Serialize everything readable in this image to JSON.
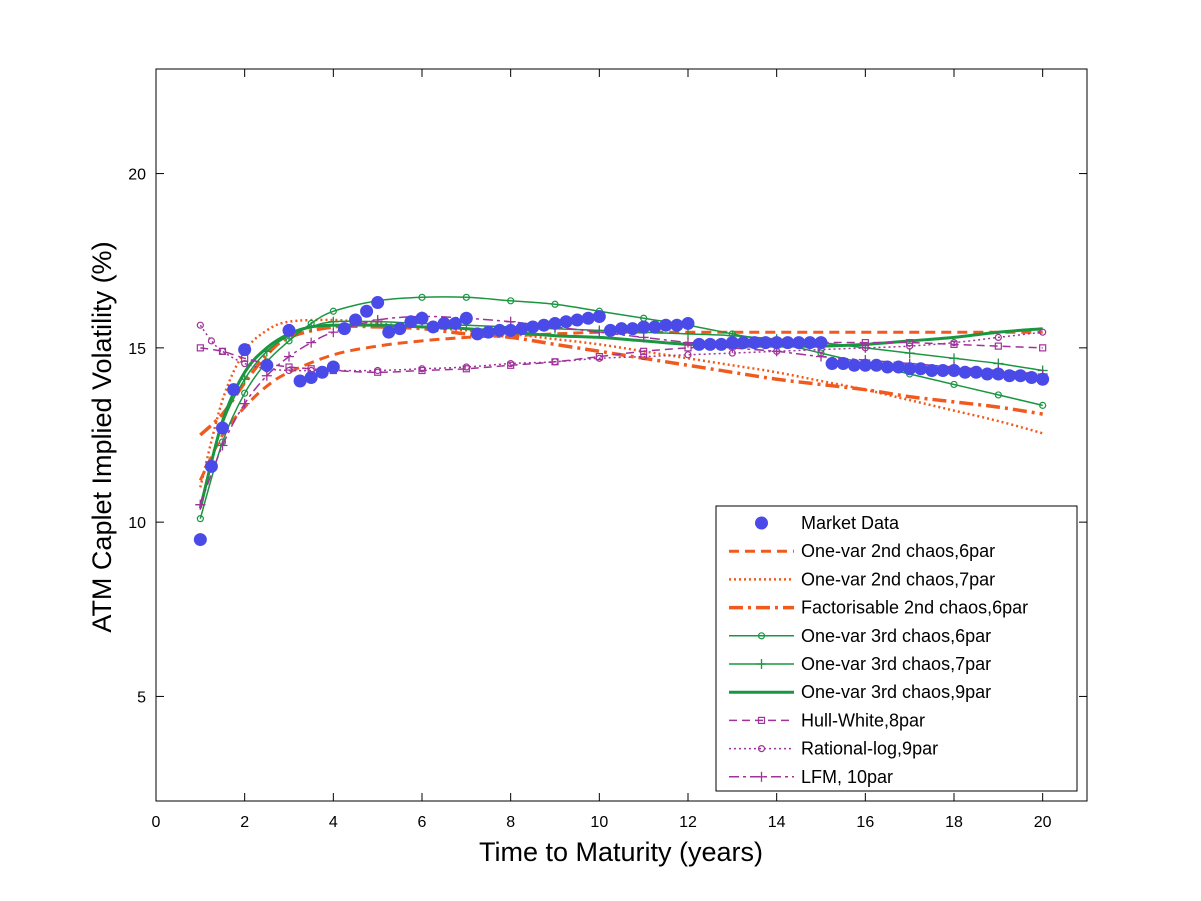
{
  "chart_data": {
    "type": "line",
    "title": "",
    "xlabel": "Time to Maturity (years)",
    "ylabel": "ATM Caplet Implied Volatility (%)",
    "xlim": [
      0,
      21
    ],
    "ylim": [
      2,
      23
    ],
    "xticks": [
      0,
      2,
      4,
      6,
      8,
      10,
      12,
      14,
      16,
      18,
      20
    ],
    "yticks": [
      5,
      10,
      15,
      20
    ],
    "xtick_labels": [
      "0",
      "2",
      "4",
      "6",
      "8",
      "10",
      "12",
      "14",
      "16",
      "18",
      "20"
    ],
    "ytick_labels": [
      "5",
      "10",
      "15",
      "20"
    ],
    "legend_position": "bottom-right",
    "series": [
      {
        "name": "Market Data",
        "style": "marker",
        "color": "#4a4ae8",
        "x": [
          1,
          1.25,
          1.5,
          1.75,
          2,
          2.5,
          3,
          3.25,
          3.5,
          3.75,
          4,
          4.25,
          4.5,
          4.75,
          5,
          5.25,
          5.5,
          5.75,
          6,
          6.25,
          6.5,
          6.75,
          7,
          7.25,
          7.5,
          7.75,
          8,
          8.25,
          8.5,
          8.75,
          9,
          9.25,
          9.5,
          9.75,
          10,
          10.25,
          10.5,
          10.75,
          11,
          11.25,
          11.5,
          11.75,
          12,
          12.25,
          12.5,
          12.75,
          13,
          13.25,
          13.5,
          13.75,
          14,
          14.25,
          14.5,
          14.75,
          15,
          15.25,
          15.5,
          15.75,
          16,
          16.25,
          16.5,
          16.75,
          17,
          17.25,
          17.5,
          17.75,
          18,
          18.25,
          18.5,
          18.75,
          19,
          19.25,
          19.5,
          19.75,
          20
        ],
        "y": [
          9.5,
          11.6,
          12.7,
          13.8,
          14.95,
          14.5,
          15.5,
          14.05,
          14.15,
          14.3,
          14.45,
          15.55,
          15.8,
          16.05,
          16.3,
          15.45,
          15.55,
          15.75,
          15.85,
          15.6,
          15.7,
          15.7,
          15.85,
          15.4,
          15.45,
          15.5,
          15.5,
          15.55,
          15.6,
          15.65,
          15.7,
          15.75,
          15.8,
          15.85,
          15.9,
          15.5,
          15.55,
          15.55,
          15.6,
          15.6,
          15.65,
          15.65,
          15.7,
          15.1,
          15.1,
          15.1,
          15.15,
          15.15,
          15.15,
          15.15,
          15.15,
          15.15,
          15.15,
          15.15,
          15.15,
          14.55,
          14.55,
          14.5,
          14.5,
          14.5,
          14.45,
          14.45,
          14.4,
          14.4,
          14.35,
          14.35,
          14.35,
          14.3,
          14.3,
          14.25,
          14.25,
          14.2,
          14.2,
          14.15,
          14.1
        ]
      },
      {
        "name": "One-var 2nd chaos,6par",
        "style": "dashed",
        "color": "#f05a1e",
        "x": [
          1,
          1.5,
          2,
          2.5,
          3,
          4,
          5,
          6,
          7,
          8,
          9,
          10,
          11,
          12,
          13,
          14,
          15,
          16,
          17,
          18,
          19,
          20
        ],
        "y": [
          11.2,
          12.5,
          13.3,
          13.9,
          14.3,
          14.8,
          15.05,
          15.2,
          15.3,
          15.35,
          15.4,
          15.45,
          15.45,
          15.45,
          15.45,
          15.45,
          15.45,
          15.45,
          15.45,
          15.45,
          15.45,
          15.45
        ]
      },
      {
        "name": "One-var 2nd chaos,7par",
        "style": "dotted",
        "color": "#f05a1e",
        "x": [
          1,
          1.5,
          2,
          2.5,
          3,
          4,
          5,
          6,
          7,
          8,
          9,
          10,
          11,
          12,
          13,
          14,
          15,
          16,
          17,
          18,
          19,
          20
        ],
        "y": [
          11.0,
          13.5,
          14.9,
          15.5,
          15.75,
          15.8,
          15.7,
          15.6,
          15.5,
          15.4,
          15.25,
          15.1,
          14.9,
          14.7,
          14.5,
          14.3,
          14.05,
          13.8,
          13.5,
          13.2,
          12.9,
          12.55
        ]
      },
      {
        "name": "Factorisable 2nd chaos,6par",
        "style": "dashdot",
        "color": "#f05a1e",
        "x": [
          1,
          1.5,
          2,
          2.5,
          3,
          4,
          5,
          6,
          7,
          8,
          9,
          10,
          11,
          12,
          13,
          14,
          15,
          16,
          17,
          18,
          19,
          20
        ],
        "y": [
          12.5,
          13.1,
          14.0,
          14.8,
          15.3,
          15.6,
          15.6,
          15.55,
          15.4,
          15.3,
          15.1,
          14.9,
          14.7,
          14.5,
          14.3,
          14.1,
          13.95,
          13.8,
          13.6,
          13.45,
          13.3,
          13.1
        ]
      },
      {
        "name": "One-var 3rd chaos,6par",
        "style": "circle-line",
        "color": "#1a9641",
        "x": [
          1,
          1.5,
          2,
          2.5,
          3,
          3.5,
          4,
          5,
          6,
          7,
          8,
          9,
          10,
          11,
          12,
          13,
          14,
          15,
          16,
          17,
          18,
          19,
          20
        ],
        "y": [
          10.1,
          12.3,
          13.7,
          14.6,
          15.2,
          15.7,
          16.05,
          16.35,
          16.45,
          16.45,
          16.35,
          16.25,
          16.05,
          15.85,
          15.65,
          15.4,
          15.15,
          14.85,
          14.55,
          14.25,
          13.95,
          13.65,
          13.35
        ]
      },
      {
        "name": "One-var 3rd chaos,7par",
        "style": "plus-line",
        "color": "#1a9641",
        "x": [
          1,
          1.5,
          2,
          2.5,
          3,
          3.5,
          4,
          5,
          6,
          7,
          8,
          9,
          10,
          11,
          12,
          13,
          14,
          15,
          16,
          17,
          18,
          19,
          20
        ],
        "y": [
          10.5,
          12.8,
          14.1,
          14.9,
          15.35,
          15.6,
          15.75,
          15.75,
          15.7,
          15.65,
          15.6,
          15.55,
          15.5,
          15.45,
          15.4,
          15.35,
          15.25,
          15.15,
          15.0,
          14.85,
          14.7,
          14.55,
          14.35
        ]
      },
      {
        "name": "One-var 3rd chaos,9par",
        "style": "solid",
        "color": "#1a9641",
        "x": [
          1,
          1.5,
          2,
          2.5,
          3,
          3.5,
          4,
          5,
          6,
          7,
          8,
          9,
          10,
          11,
          12,
          13,
          14,
          15,
          16,
          17,
          18,
          19,
          20
        ],
        "y": [
          10.4,
          12.9,
          14.3,
          15.0,
          15.4,
          15.6,
          15.65,
          15.65,
          15.6,
          15.55,
          15.45,
          15.35,
          15.3,
          15.2,
          15.1,
          15.05,
          15.05,
          15.05,
          15.1,
          15.2,
          15.3,
          15.45,
          15.55
        ]
      },
      {
        "name": "Hull-White,8par",
        "style": "square-dashed",
        "color": "#a0329b",
        "x": [
          1,
          1.5,
          2,
          2.5,
          3,
          3.5,
          4,
          5,
          6,
          7,
          8,
          9,
          10,
          11,
          12,
          13,
          14,
          15,
          16,
          17,
          18,
          19,
          20
        ],
        "y": [
          15.0,
          14.9,
          14.7,
          14.55,
          14.45,
          14.4,
          14.35,
          14.3,
          14.35,
          14.4,
          14.5,
          14.6,
          14.75,
          14.9,
          15.0,
          15.05,
          15.1,
          15.15,
          15.15,
          15.15,
          15.1,
          15.05,
          15.0
        ]
      },
      {
        "name": "Rational-log,9par",
        "style": "circle-dotted",
        "color": "#a0329b",
        "x": [
          1,
          1.25,
          1.5,
          2,
          2.5,
          3,
          3.5,
          4,
          5,
          6,
          7,
          8,
          9,
          10,
          11,
          12,
          13,
          14,
          15,
          16,
          17,
          18,
          19,
          20
        ],
        "y": [
          15.65,
          15.2,
          14.9,
          14.55,
          14.4,
          14.35,
          14.35,
          14.35,
          14.35,
          14.4,
          14.45,
          14.55,
          14.6,
          14.7,
          14.75,
          14.8,
          14.85,
          14.9,
          14.95,
          15.0,
          15.05,
          15.15,
          15.3,
          15.45
        ]
      },
      {
        "name": "LFM, 10par",
        "style": "plus-dashdot",
        "color": "#a0329b",
        "x": [
          1,
          1.5,
          2,
          2.5,
          3,
          3.5,
          4,
          5,
          6,
          7,
          8,
          9,
          10,
          11,
          12,
          13,
          14,
          15,
          16,
          17,
          18,
          19,
          20
        ],
        "y": [
          10.5,
          12.2,
          13.4,
          14.2,
          14.75,
          15.15,
          15.45,
          15.8,
          15.9,
          15.85,
          15.75,
          15.6,
          15.45,
          15.3,
          15.15,
          15.0,
          14.9,
          14.75,
          14.65,
          14.55,
          14.45,
          14.35,
          14.25
        ]
      }
    ]
  }
}
